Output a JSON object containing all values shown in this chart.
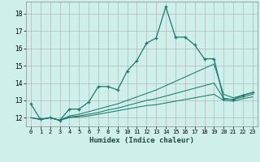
{
  "xlabel": "Humidex (Indice chaleur)",
  "background_color": "#cff0ea",
  "grid_color": "#aaaaaa",
  "line_color": "#1a7a6e",
  "xlim": [
    -0.5,
    23.5
  ],
  "ylim": [
    11.5,
    18.7
  ],
  "xticks": [
    0,
    1,
    2,
    3,
    4,
    5,
    6,
    7,
    8,
    9,
    10,
    11,
    12,
    13,
    14,
    15,
    16,
    17,
    18,
    19,
    20,
    21,
    22,
    23
  ],
  "yticks": [
    12,
    13,
    14,
    15,
    16,
    17,
    18
  ],
  "series": [
    {
      "x": [
        0,
        1,
        2,
        3,
        4,
        5,
        6,
        7,
        8,
        9,
        10,
        11,
        12,
        13,
        14,
        15,
        16,
        17,
        18,
        19,
        20,
        21,
        22,
        23
      ],
      "y": [
        12.8,
        11.9,
        12.0,
        11.85,
        12.5,
        12.5,
        12.9,
        13.8,
        13.8,
        13.6,
        14.7,
        15.3,
        16.3,
        16.6,
        18.4,
        16.65,
        16.65,
        16.2,
        15.4,
        15.4,
        13.1,
        13.05,
        13.3,
        13.45
      ],
      "marker": true
    },
    {
      "x": [
        0,
        1,
        2,
        3,
        4,
        5,
        6,
        7,
        8,
        9,
        10,
        11,
        12,
        13,
        14,
        15,
        16,
        17,
        18,
        19,
        20,
        21,
        22,
        23
      ],
      "y": [
        12.0,
        11.9,
        12.0,
        11.85,
        12.1,
        12.2,
        12.35,
        12.5,
        12.65,
        12.8,
        13.0,
        13.2,
        13.4,
        13.6,
        13.85,
        14.1,
        14.35,
        14.6,
        14.85,
        15.1,
        13.35,
        13.15,
        13.3,
        13.45
      ],
      "marker": false
    },
    {
      "x": [
        0,
        1,
        2,
        3,
        4,
        5,
        6,
        7,
        8,
        9,
        10,
        11,
        12,
        13,
        14,
        15,
        16,
        17,
        18,
        19,
        20,
        21,
        22,
        23
      ],
      "y": [
        12.0,
        11.9,
        12.0,
        11.85,
        12.05,
        12.1,
        12.2,
        12.3,
        12.45,
        12.55,
        12.7,
        12.85,
        13.0,
        13.1,
        13.25,
        13.4,
        13.55,
        13.7,
        13.85,
        14.0,
        13.1,
        13.05,
        13.2,
        13.35
      ],
      "marker": false
    },
    {
      "x": [
        0,
        1,
        2,
        3,
        4,
        5,
        6,
        7,
        8,
        9,
        10,
        11,
        12,
        13,
        14,
        15,
        16,
        17,
        18,
        19,
        20,
        21,
        22,
        23
      ],
      "y": [
        12.0,
        11.9,
        12.0,
        11.85,
        12.0,
        12.05,
        12.1,
        12.2,
        12.3,
        12.4,
        12.5,
        12.6,
        12.7,
        12.75,
        12.85,
        12.95,
        13.05,
        13.15,
        13.25,
        13.35,
        13.0,
        12.95,
        13.1,
        13.2
      ],
      "marker": false
    }
  ]
}
